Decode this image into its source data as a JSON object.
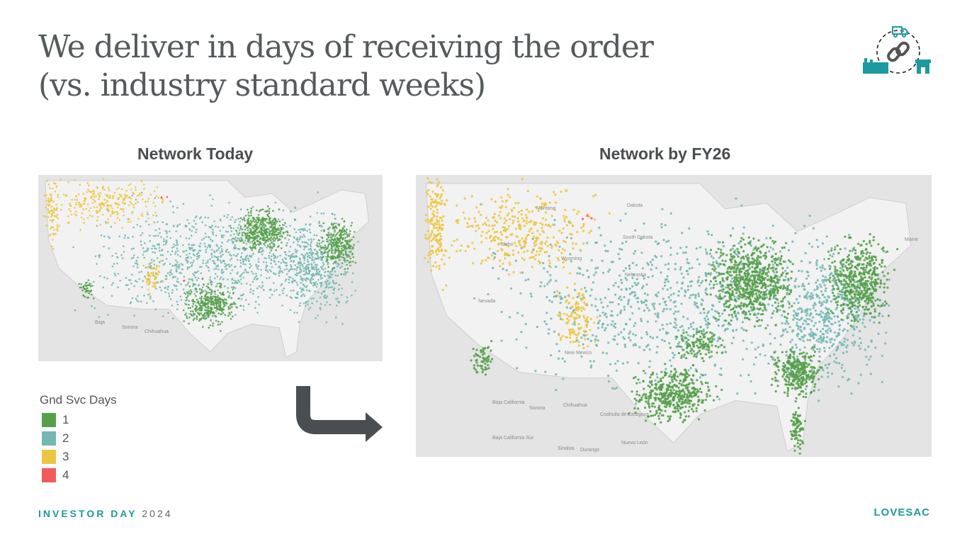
{
  "title": {
    "line1": "We deliver in days of receiving the order",
    "line2": "(vs. industry standard weeks)"
  },
  "maps": {
    "left": {
      "heading": "Network Today",
      "labels": [
        "Baja",
        "Sonora",
        "Chihuahua"
      ]
    },
    "right": {
      "heading": "Network by FY26",
      "labels": [
        "Montana",
        "Idaho",
        "Wyoming",
        "Nevada",
        "Dakota",
        "South Dakota",
        "Nebraska",
        "New Mexico",
        "Baja California",
        "Sonora",
        "Chihuahua",
        "Coahuila de Zaragoza",
        "Nuevo León",
        "Baja California Sur",
        "Sinaloa",
        "Durango",
        "Maine"
      ]
    }
  },
  "legend": {
    "title": "Gnd Svc Days",
    "items": [
      {
        "label": "1",
        "color": "#56a04b"
      },
      {
        "label": "2",
        "color": "#75b8b3"
      },
      {
        "label": "3",
        "color": "#ecc641"
      },
      {
        "label": "4",
        "color": "#f25b5b"
      }
    ]
  },
  "footer": {
    "event": "INVESTOR DAY",
    "year": "2024"
  },
  "brand": "LOVESAC",
  "colors": {
    "accent": "#1d9aa0",
    "title": "#555a5c",
    "arrow": "#4b4e51"
  }
}
